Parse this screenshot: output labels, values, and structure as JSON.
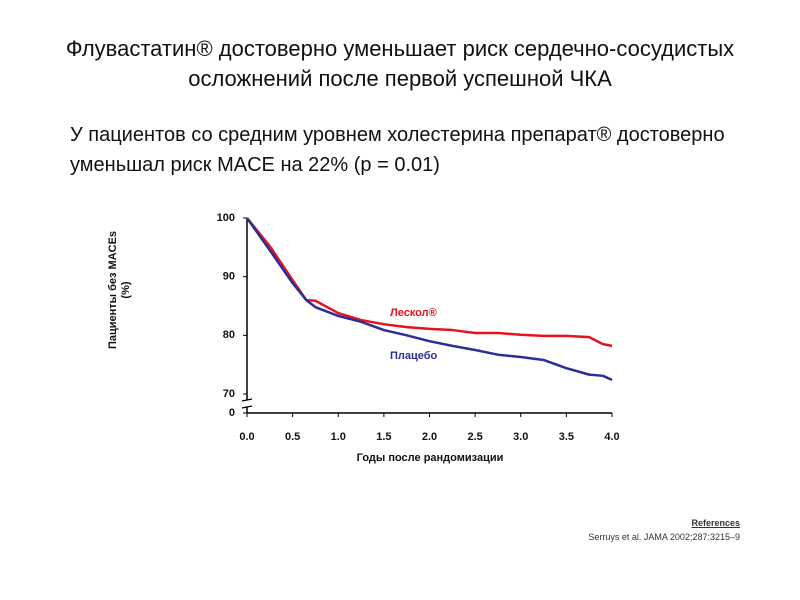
{
  "title": "Флувастатин® достоверно уменьшает риск сердечно-сосудистых осложнений после первой успешной ЧКА",
  "subtitle": "У пациентов со средним уровнем холестерина препарат® достоверно уменьшал риск MACE на 22% (p = 0.01)",
  "footer": {
    "heading": "References",
    "citation": "Serruys et al. JAMA 2002;287:3215–9"
  },
  "chart_data": {
    "type": "line",
    "x_label": "Годы после рандомизации",
    "y_label": "Пациенты без MACEs (%)",
    "x": [
      0,
      0.25,
      0.5,
      0.65,
      0.75,
      1,
      1.25,
      1.5,
      1.75,
      2,
      2.25,
      2.5,
      2.75,
      3,
      3.25,
      3.5,
      3.75,
      3.9,
      4
    ],
    "series": [
      {
        "name": "Лескол®",
        "color": "#e8121c",
        "values": [
          100,
          95.2,
          89.4,
          86,
          85.9,
          83.8,
          82.6,
          81.9,
          81.4,
          81.1,
          80.9,
          80.4,
          80.4,
          80.1,
          79.9,
          79.9,
          79.7,
          78.5,
          78.2
        ]
      },
      {
        "name": "Плацебо",
        "color": "#2b2f95",
        "values": [
          100,
          94.5,
          88.9,
          86,
          84.8,
          83.3,
          82.3,
          80.9,
          80,
          79,
          78.2,
          77.5,
          76.7,
          76.3,
          75.8,
          74.4,
          73.3,
          73.1,
          72.4
        ]
      }
    ],
    "xlim": [
      0,
      4
    ],
    "xticks": [
      {
        "value": 0,
        "label": "0.0"
      },
      0.5,
      {
        "value": 1,
        "label": "1.0"
      },
      1.5,
      {
        "value": 2,
        "label": "2.0"
      },
      2.5,
      {
        "value": 3,
        "label": "3.0"
      },
      3.5,
      {
        "value": 4,
        "label": "4.0"
      }
    ],
    "ylim": [
      0,
      100
    ],
    "y_break": [
      0,
      70
    ],
    "yticks": [
      0,
      70,
      80,
      90,
      100
    ]
  }
}
